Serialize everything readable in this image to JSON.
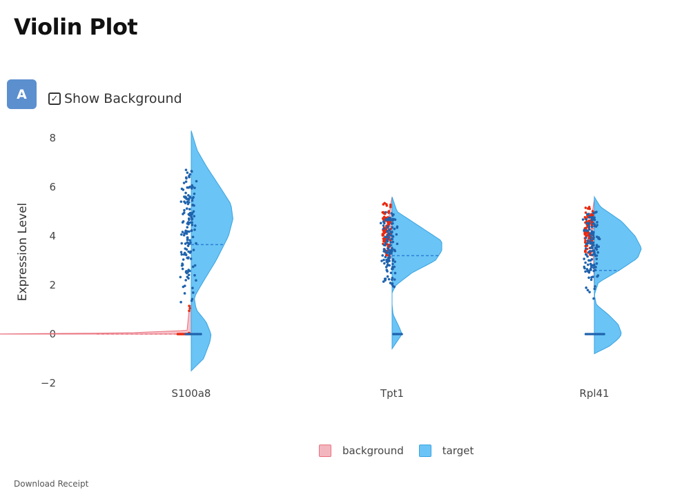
{
  "page": {
    "title": "Violin Plot",
    "panel_badge": "A",
    "show_background_label": "Show Background",
    "show_background_checked": true,
    "download_label": "Download Receipt"
  },
  "colors": {
    "background_fill": "#f4b6be",
    "background_line": "#e8707d",
    "background_points": "#e8290f",
    "target_fill": "#6ac4f5",
    "target_line": "#3aa3e0",
    "target_points": "#1f63ad",
    "median_line": "#2d7fd8"
  },
  "legend": [
    {
      "name": "background",
      "color": "#f4b6be",
      "border": "#e8707d"
    },
    {
      "name": "target",
      "color": "#6ac4f5",
      "border": "#3aa3e0"
    }
  ],
  "chart_data": {
    "type": "violin",
    "title": "",
    "xlabel": "",
    "ylabel": "Expression Level",
    "ylim": [
      -2,
      8.3
    ],
    "yticks": [
      -2,
      0,
      2,
      4,
      6,
      8
    ],
    "ytick_labels": [
      "−2",
      "0",
      "2",
      "4",
      "6",
      "8"
    ],
    "categories": [
      "S100a8",
      "Tpt1",
      "Rpl41"
    ],
    "split": true,
    "series": [
      {
        "name": "background",
        "side": "negative",
        "violins": [
          {
            "category": "S100a8",
            "min": 0,
            "max": 1.2,
            "median": 0,
            "width_scale": 4.2,
            "density": [
              [
                0,
                1.0
              ],
              [
                0.05,
                0.3
              ],
              [
                0.15,
                0.02
              ],
              [
                1.0,
                0.01
              ],
              [
                1.2,
                0
              ]
            ],
            "points_y": [
              0.95,
              1.05,
              1.15,
              0.02,
              0.04
            ],
            "zero_points": 14
          },
          {
            "category": "Tpt1",
            "min": 3.0,
            "max": 5.6,
            "median": 4.4,
            "width_scale": 0.07,
            "density": [
              [
                3.0,
                0
              ],
              [
                3.5,
                0.4
              ],
              [
                4.2,
                1.0
              ],
              [
                4.8,
                0.9
              ],
              [
                5.3,
                0.4
              ],
              [
                5.6,
                0
              ]
            ],
            "points_y_range": [
              3.2,
              5.4
            ],
            "point_count": 90
          },
          {
            "category": "Rpl41",
            "min": 1.8,
            "max": 5.5,
            "median": 4.3,
            "width_scale": 0.06,
            "density": [
              [
                1.8,
                0
              ],
              [
                2.8,
                0.2
              ],
              [
                3.5,
                0.5
              ],
              [
                4.2,
                1.0
              ],
              [
                4.8,
                0.9
              ],
              [
                5.5,
                0
              ]
            ],
            "points_y_range": [
              3.2,
              5.2
            ],
            "point_count": 90
          }
        ]
      },
      {
        "name": "target",
        "side": "positive",
        "violins": [
          {
            "category": "S100a8",
            "min": -1.5,
            "max": 8.3,
            "median": 3.65,
            "width_scale": 1.0,
            "density": [
              [
                -1.5,
                0
              ],
              [
                -1.0,
                0.25
              ],
              [
                -0.3,
                0.38
              ],
              [
                0,
                0.4
              ],
              [
                0.5,
                0.3
              ],
              [
                1.0,
                0.1
              ],
              [
                1.5,
                0.06
              ],
              [
                2.0,
                0.2
              ],
              [
                3.0,
                0.5
              ],
              [
                4.0,
                0.75
              ],
              [
                4.7,
                0.84
              ],
              [
                5.3,
                0.8
              ],
              [
                6.0,
                0.58
              ],
              [
                6.8,
                0.32
              ],
              [
                7.5,
                0.12
              ],
              [
                8.3,
                0
              ]
            ],
            "points_y_range": [
              1.3,
              6.8
            ],
            "point_count": 150,
            "zero_points": 10
          },
          {
            "category": "Tpt1",
            "min": -0.6,
            "max": 5.6,
            "median": 3.2,
            "width_scale": 1.0,
            "density": [
              [
                -0.6,
                0
              ],
              [
                -0.3,
                0.1
              ],
              [
                0,
                0.2
              ],
              [
                0.3,
                0.14
              ],
              [
                0.8,
                0.02
              ],
              [
                1.2,
                0.0
              ],
              [
                1.7,
                0.0
              ],
              [
                2.0,
                0.08
              ],
              [
                2.5,
                0.4
              ],
              [
                3.0,
                0.87
              ],
              [
                3.4,
                1.0
              ],
              [
                3.8,
                1.0
              ],
              [
                4.2,
                0.7
              ],
              [
                4.6,
                0.4
              ],
              [
                5.0,
                0.1
              ],
              [
                5.6,
                0
              ]
            ],
            "points_y_range": [
              1.9,
              5.1
            ],
            "point_count": 130,
            "zero_points": 6
          },
          {
            "category": "Rpl41",
            "min": -0.8,
            "max": 5.6,
            "median": 2.6,
            "width_scale": 1.0,
            "density": [
              [
                -0.8,
                0
              ],
              [
                -0.5,
                0.3
              ],
              [
                -0.2,
                0.48
              ],
              [
                0,
                0.55
              ],
              [
                0.4,
                0.48
              ],
              [
                0.8,
                0.28
              ],
              [
                1.2,
                0.04
              ],
              [
                1.6,
                0.0
              ],
              [
                2.1,
                0.08
              ],
              [
                2.6,
                0.5
              ],
              [
                3.1,
                0.87
              ],
              [
                3.5,
                0.95
              ],
              [
                4.0,
                0.82
              ],
              [
                4.6,
                0.55
              ],
              [
                5.2,
                0.12
              ],
              [
                5.6,
                0
              ]
            ],
            "points_y_range": [
              1.4,
              5.0
            ],
            "point_count": 130,
            "zero_points": 12
          }
        ]
      }
    ]
  }
}
